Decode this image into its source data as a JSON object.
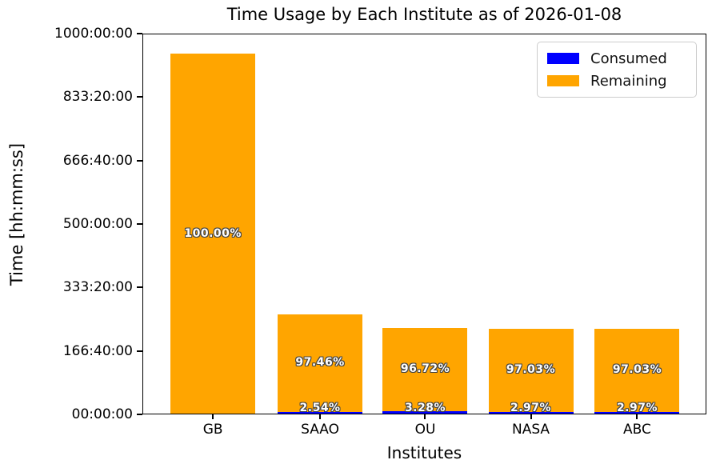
{
  "chart_data": {
    "type": "bar",
    "stacked": true,
    "title": "Time Usage by Each Institute as of 2026-01-08",
    "xlabel": "Institutes",
    "ylabel": "Time [hh:mm:ss]",
    "categories": [
      "GB",
      "SAAO",
      "OU",
      "NASA",
      "ABC"
    ],
    "series": [
      {
        "name": "Consumed",
        "color": "#0000ff",
        "values_hours": [
          0,
          6.7,
          7.4,
          6.7,
          6.6
        ],
        "labels": [
          "",
          "2.54%",
          "3.28%",
          "2.97%",
          "2.97%"
        ]
      },
      {
        "name": "Remaining",
        "color": "#ffa500",
        "values_hours": [
          947.4,
          255.1,
          218.6,
          218.9,
          217.3
        ],
        "labels": [
          "100.00%",
          "97.46%",
          "96.72%",
          "97.03%",
          "97.03%"
        ]
      }
    ],
    "totals_hours": [
      947.4,
      261.8,
      226.0,
      225.6,
      223.9
    ],
    "yticks": [
      {
        "hours": 0,
        "label": "00:00:00"
      },
      {
        "hours": 166.6667,
        "label": "166:40:00"
      },
      {
        "hours": 333.3333,
        "label": "333:20:00"
      },
      {
        "hours": 500,
        "label": "500:00:00"
      },
      {
        "hours": 666.6667,
        "label": "666:40:00"
      },
      {
        "hours": 833.3333,
        "label": "833:20:00"
      },
      {
        "hours": 1000,
        "label": "1000:00:00"
      }
    ],
    "ylim_hours": [
      0,
      1000
    ],
    "legend_position": "upper right",
    "grid": false
  }
}
